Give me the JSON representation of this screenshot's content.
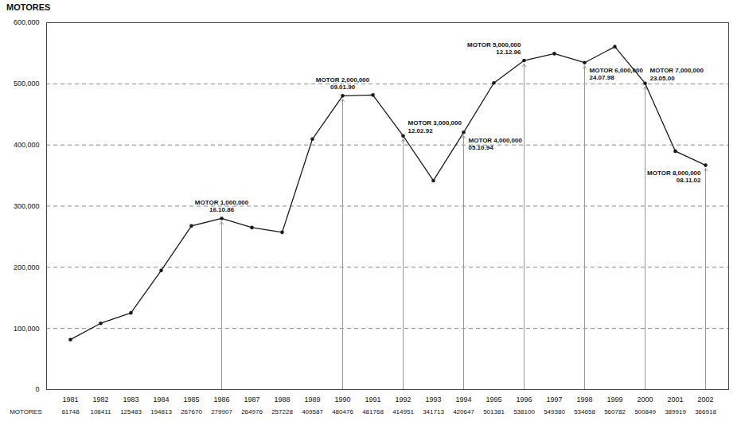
{
  "chart_data": {
    "type": "line",
    "title": "MOTORES",
    "row_label": "MOTORES",
    "categories": [
      "1981",
      "1982",
      "1983",
      "1984",
      "1985",
      "1986",
      "1987",
      "1988",
      "1989",
      "1990",
      "1991",
      "1992",
      "1993",
      "1994",
      "1995",
      "1996",
      "1997",
      "1998",
      "1999",
      "2000",
      "2001",
      "2002"
    ],
    "values": [
      81748,
      108411,
      125483,
      194813,
      267670,
      279907,
      264976,
      257228,
      409587,
      480476,
      481768,
      414951,
      341713,
      420647,
      501381,
      538100,
      549380,
      534658,
      560782,
      500849,
      389919,
      366918
    ],
    "color": "#1a1a1a",
    "marker": "circle",
    "grid": true,
    "data_labels": true,
    "ylim": [
      0,
      600000
    ],
    "yticks": [
      0,
      {
        "value": 100000,
        "label": "100,000"
      },
      {
        "value": 200000,
        "label": "200,000"
      },
      {
        "value": 300000,
        "label": "300,000"
      },
      {
        "value": 400000,
        "label": "400,000"
      },
      {
        "value": 500000,
        "label": "500,000"
      },
      {
        "value": 600000,
        "label": "600,000"
      }
    ],
    "annotations": [
      {
        "x": "1986",
        "label": "MOTOR 1,000,000",
        "date": "16.10.86"
      },
      {
        "x": "1990",
        "label": "MOTOR 2,000,000",
        "date": "09.01.90"
      },
      {
        "x": "1992",
        "label": "MOTOR 3,000,000",
        "date": "12.02.92"
      },
      {
        "x": "1994",
        "label": "MOTOR 4,000,000",
        "date": "05.10.94"
      },
      {
        "x": "1996",
        "label": "MOTOR 5,000,000",
        "date": "12.12.96"
      },
      {
        "x": "1998",
        "label": "MOTOR 6,000,000",
        "date": "24.07.98"
      },
      {
        "x": "2000",
        "label": "MOTOR 7,000,000",
        "date": "23.05.00"
      },
      {
        "x": "2002",
        "label": "MOTOR 8,000,000",
        "date": "08.11.02"
      }
    ]
  }
}
